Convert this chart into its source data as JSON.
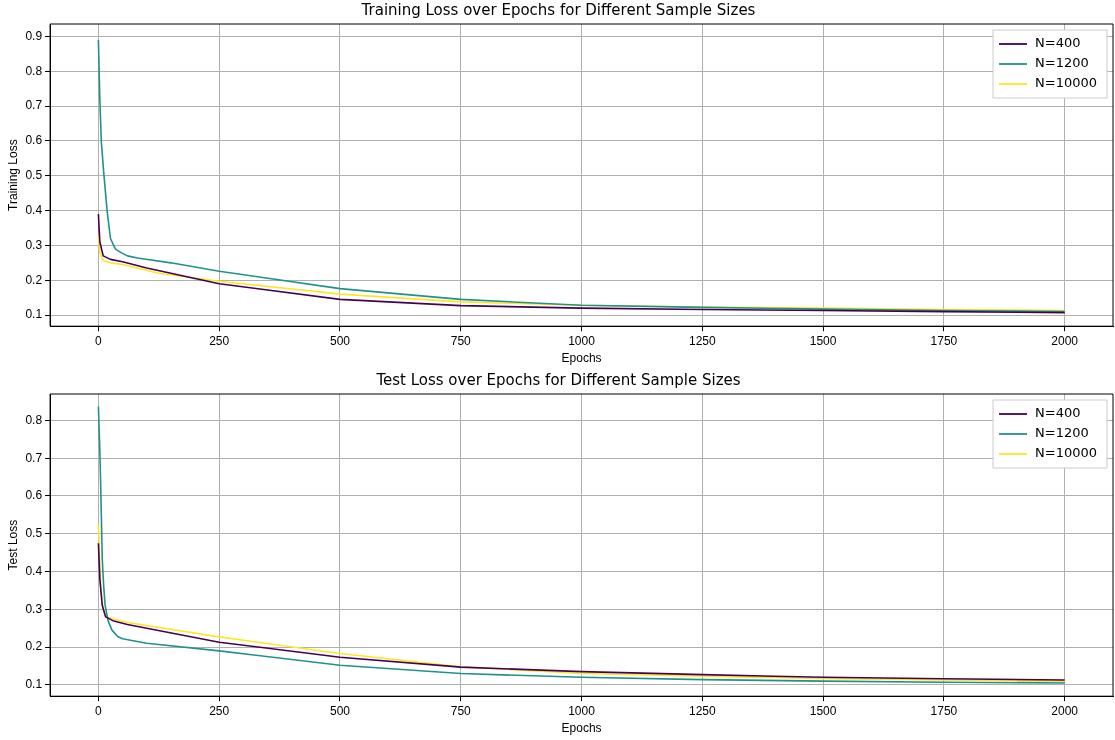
{
  "chart_data": [
    {
      "type": "line",
      "title": "Training Loss over Epochs for Different Sample Sizes",
      "xlabel": "Epochs",
      "ylabel": "Training Loss",
      "xlim": [
        -100,
        2100
      ],
      "xticks": [
        0,
        250,
        500,
        750,
        1000,
        1250,
        1500,
        1750,
        2000
      ],
      "ylim": [
        0.068,
        0.936
      ],
      "yticks": [
        0.1,
        0.2,
        0.3,
        0.4,
        0.5,
        0.6,
        0.7,
        0.8,
        0.9
      ],
      "grid": true,
      "legend": "top right",
      "marker": "none",
      "line_style": "solid",
      "series": [
        {
          "name": "N=400",
          "color": "#440154",
          "x": [
            0,
            3,
            10,
            25,
            50,
            100,
            250,
            500,
            750,
            1000,
            1250,
            1500,
            1750,
            2000
          ],
          "values": [
            0.39,
            0.31,
            0.27,
            0.26,
            0.253,
            0.235,
            0.19,
            0.145,
            0.127,
            0.12,
            0.116,
            0.113,
            0.11,
            0.107
          ]
        },
        {
          "name": "N=1200",
          "color": "#21918c",
          "x": [
            0,
            3,
            6,
            11,
            18,
            25,
            35,
            46,
            60,
            81,
            150,
            250,
            500,
            750,
            1000,
            1250,
            1500,
            1750,
            2000
          ],
          "values": [
            0.89,
            0.72,
            0.6,
            0.51,
            0.4,
            0.32,
            0.29,
            0.28,
            0.27,
            0.264,
            0.25,
            0.226,
            0.176,
            0.145,
            0.128,
            0.122,
            0.117,
            0.113,
            0.11
          ]
        },
        {
          "name": "N=10000",
          "color": "#fde725",
          "x": [
            0,
            3,
            10,
            25,
            50,
            125,
            250,
            500,
            750,
            1000,
            1250,
            1500,
            1750,
            2000
          ],
          "values": [
            0.33,
            0.28,
            0.256,
            0.25,
            0.245,
            0.22,
            0.197,
            0.16,
            0.138,
            0.128,
            0.123,
            0.12,
            0.116,
            0.113
          ]
        }
      ]
    },
    {
      "type": "line",
      "title": "Test Loss over Epochs for Different Sample Sizes",
      "xlabel": "Epochs",
      "ylabel": "Test Loss",
      "xlim": [
        -100,
        2100
      ],
      "xticks": [
        0,
        250,
        500,
        750,
        1000,
        1250,
        1500,
        1750,
        2000
      ],
      "ylim": [
        0.07,
        0.87
      ],
      "yticks": [
        0.1,
        0.2,
        0.3,
        0.4,
        0.5,
        0.6,
        0.7,
        0.8
      ],
      "grid": true,
      "legend": "top right",
      "marker": "none",
      "line_style": "solid",
      "series": [
        {
          "name": "N=400",
          "color": "#440154",
          "x": [
            0,
            3,
            8,
            15,
            30,
            60,
            250,
            500,
            750,
            1000,
            1250,
            1500,
            1750,
            2000
          ],
          "values": [
            0.475,
            0.38,
            0.31,
            0.28,
            0.27,
            0.26,
            0.213,
            0.173,
            0.147,
            0.135,
            0.127,
            0.12,
            0.116,
            0.113
          ]
        },
        {
          "name": "N=1200",
          "color": "#21918c",
          "x": [
            0,
            3,
            5,
            8,
            11,
            14,
            20,
            28,
            40,
            50,
            100,
            250,
            500,
            750,
            1000,
            1250,
            1500,
            1750,
            2000
          ],
          "values": [
            0.837,
            0.72,
            0.615,
            0.433,
            0.36,
            0.31,
            0.27,
            0.245,
            0.228,
            0.222,
            0.21,
            0.19,
            0.152,
            0.13,
            0.12,
            0.114,
            0.11,
            0.107,
            0.105
          ]
        },
        {
          "name": "N=10000",
          "color": "#fde725",
          "x": [
            0,
            3,
            5,
            10,
            15,
            30,
            60,
            250,
            500,
            750,
            1000,
            1250,
            1500,
            1750,
            2000
          ],
          "values": [
            0.525,
            0.42,
            0.35,
            0.3,
            0.28,
            0.275,
            0.265,
            0.227,
            0.183,
            0.148,
            0.13,
            0.123,
            0.117,
            0.113,
            0.11
          ]
        }
      ]
    }
  ]
}
